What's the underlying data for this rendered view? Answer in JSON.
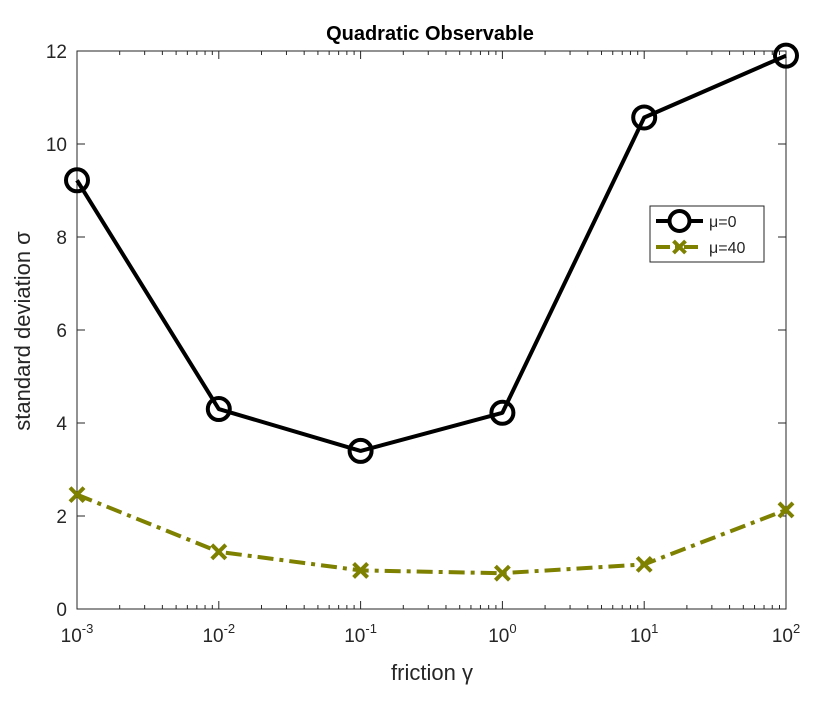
{
  "chart_data": {
    "type": "line",
    "title": "Quadratic Observable",
    "xlabel": "friction γ",
    "ylabel": "standard deviation σ",
    "x_scale": "log",
    "x": [
      0.001,
      0.01,
      0.1,
      1,
      10,
      100
    ],
    "xlim": [
      0.001,
      100
    ],
    "ylim": [
      0,
      12
    ],
    "x_tick_labels": [
      {
        "base": "10",
        "exp": "-3"
      },
      {
        "base": "10",
        "exp": "-2"
      },
      {
        "base": "10",
        "exp": "-1"
      },
      {
        "base": "10",
        "exp": "0"
      },
      {
        "base": "10",
        "exp": "1"
      },
      {
        "base": "10",
        "exp": "2"
      }
    ],
    "y_ticks": [
      0,
      2,
      4,
      6,
      8,
      10,
      12
    ],
    "y_tick_labels": [
      "0",
      "2",
      "4",
      "6",
      "8",
      "10",
      "12"
    ],
    "grid": false,
    "legend_position": "right",
    "series": [
      {
        "name": "μ=0",
        "values": [
          9.22,
          4.3,
          3.4,
          4.22,
          10.57,
          11.9
        ],
        "color": "#000000",
        "line_style": "solid",
        "marker": "circle"
      },
      {
        "name": "μ=40",
        "values": [
          2.46,
          1.23,
          0.83,
          0.77,
          0.96,
          2.13
        ],
        "color": "#7e8000",
        "line_style": "dashdot",
        "marker": "x"
      }
    ]
  }
}
